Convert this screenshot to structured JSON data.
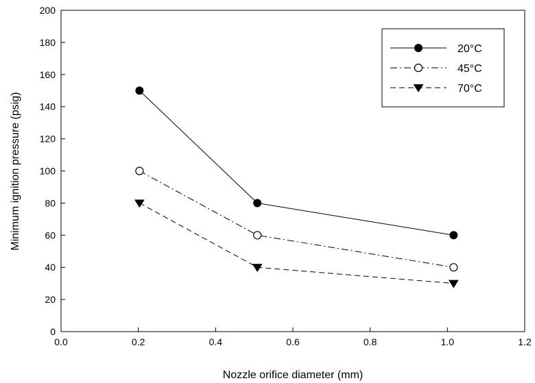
{
  "chart_data": {
    "type": "line",
    "title": "",
    "xlabel": "Nozzle orifice diameter (mm)",
    "ylabel": "Minimum ignition pressure (psig)",
    "xlim": [
      0.0,
      1.2
    ],
    "ylim": [
      0,
      200
    ],
    "x_ticks": [
      "0.0",
      "0.2",
      "0.4",
      "0.6",
      "0.8",
      "1.0",
      "1.2"
    ],
    "y_ticks": [
      "0",
      "20",
      "40",
      "60",
      "80",
      "100",
      "120",
      "140",
      "160",
      "180",
      "200"
    ],
    "grid": false,
    "legend_position": "top-right",
    "series": [
      {
        "name": "20°C",
        "x": [
          0.203,
          0.508,
          1.016
        ],
        "y": [
          150,
          80,
          60
        ],
        "marker": "filled-circle",
        "line_style": "solid",
        "color": "#000000"
      },
      {
        "name": "45°C",
        "x": [
          0.203,
          0.508,
          1.016
        ],
        "y": [
          100,
          60,
          40
        ],
        "marker": "open-circle",
        "line_style": "dash-dot",
        "color": "#000000"
      },
      {
        "name": "70°C",
        "x": [
          0.203,
          0.508,
          1.016
        ],
        "y": [
          80,
          40,
          30
        ],
        "marker": "filled-triangle-down",
        "line_style": "dashed",
        "color": "#000000"
      }
    ]
  }
}
